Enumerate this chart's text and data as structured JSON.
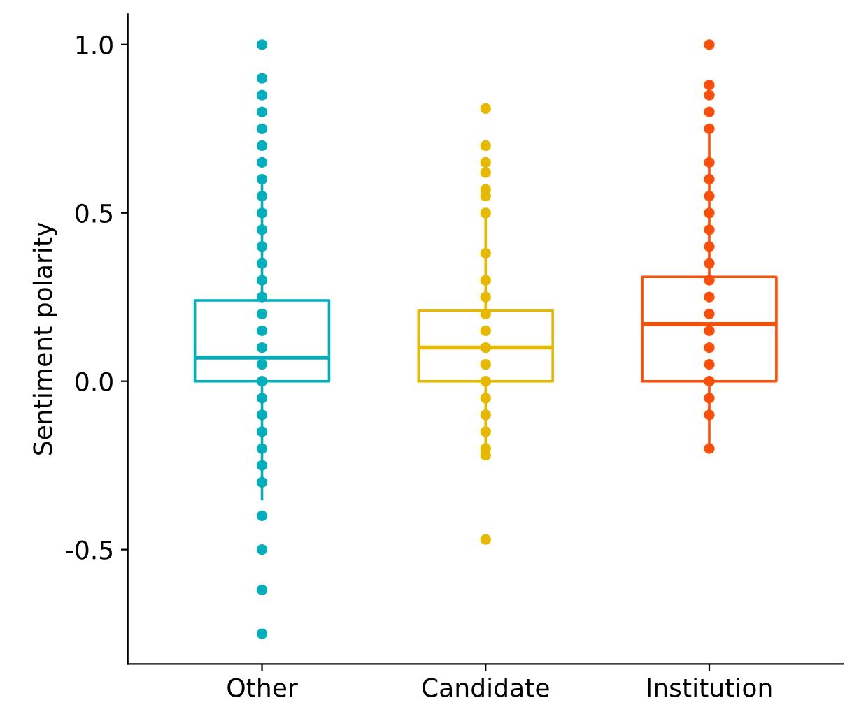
{
  "chart_data": {
    "type": "box",
    "ylabel": "Sentiment polarity",
    "categories": [
      "Other",
      "Candidate",
      "Institution"
    ],
    "ylim": [
      -0.84,
      1.09
    ],
    "yticks": [
      {
        "value": -0.5,
        "label": "-0.5"
      },
      {
        "value": 0.0,
        "label": "0.0"
      },
      {
        "value": 0.5,
        "label": "0.5"
      },
      {
        "value": 1.0,
        "label": "1.0"
      }
    ],
    "grid": false,
    "series": [
      {
        "color": "#00afbb",
        "boxes": [
          {
            "low": -0.35,
            "q1": 0.0,
            "median": 0.07,
            "q3": 0.24,
            "high": 0.6
          },
          null,
          null
        ]
      },
      {
        "color": "#e7b800",
        "boxes": [
          null,
          {
            "low": -0.22,
            "q1": 0.0,
            "median": 0.1,
            "q3": 0.21,
            "high": 0.5
          },
          null
        ]
      },
      {
        "color": "#fc4e07",
        "boxes": [
          null,
          null,
          {
            "low": -0.2,
            "q1": 0.0,
            "median": 0.17,
            "q3": 0.31,
            "high": 0.75
          }
        ]
      },
      {
        "type": "scatter",
        "color": "#00afbb",
        "x": [
          "Other",
          "Other",
          "Other",
          "Other",
          "Other",
          "Other",
          "Other",
          "Other",
          "Other",
          "Other",
          "Other",
          "Other",
          "Other",
          "Other",
          "Other",
          "Other",
          "Other",
          "Other",
          "Other",
          "Other",
          "Other",
          "Other",
          "Other",
          "Other",
          "Other",
          "Other",
          "Other",
          "Other",
          "Other",
          "Other"
        ],
        "values": [
          1.0,
          0.9,
          0.85,
          0.8,
          0.75,
          0.7,
          0.65,
          0.6,
          0.55,
          0.5,
          0.45,
          0.4,
          0.35,
          0.3,
          0.25,
          0.2,
          0.15,
          0.1,
          0.05,
          0.0,
          -0.05,
          -0.1,
          -0.15,
          -0.2,
          -0.25,
          -0.3,
          -0.4,
          -0.5,
          -0.62,
          -0.75
        ]
      },
      {
        "type": "scatter",
        "color": "#e7b800",
        "x": [
          "Candidate",
          "Candidate",
          "Candidate",
          "Candidate",
          "Candidate",
          "Candidate",
          "Candidate",
          "Candidate",
          "Candidate",
          "Candidate",
          "Candidate",
          "Candidate",
          "Candidate",
          "Candidate",
          "Candidate",
          "Candidate",
          "Candidate",
          "Candidate",
          "Candidate",
          "Candidate",
          "Candidate"
        ],
        "values": [
          0.81,
          0.7,
          0.65,
          0.62,
          0.57,
          0.55,
          0.5,
          0.38,
          0.3,
          0.25,
          0.2,
          0.15,
          0.1,
          0.05,
          0.0,
          -0.05,
          -0.1,
          -0.15,
          -0.2,
          -0.22,
          -0.47
        ]
      },
      {
        "type": "scatter",
        "color": "#fc4e07",
        "x": [
          "Institution",
          "Institution",
          "Institution",
          "Institution",
          "Institution",
          "Institution",
          "Institution",
          "Institution",
          "Institution",
          "Institution",
          "Institution",
          "Institution",
          "Institution",
          "Institution",
          "Institution",
          "Institution",
          "Institution",
          "Institution",
          "Institution",
          "Institution",
          "Institution",
          "Institution"
        ],
        "values": [
          1.0,
          0.88,
          0.85,
          0.8,
          0.75,
          0.65,
          0.6,
          0.55,
          0.5,
          0.45,
          0.4,
          0.35,
          0.3,
          0.25,
          0.2,
          0.15,
          0.1,
          0.05,
          0.0,
          -0.05,
          -0.1,
          -0.2
        ]
      }
    ]
  }
}
